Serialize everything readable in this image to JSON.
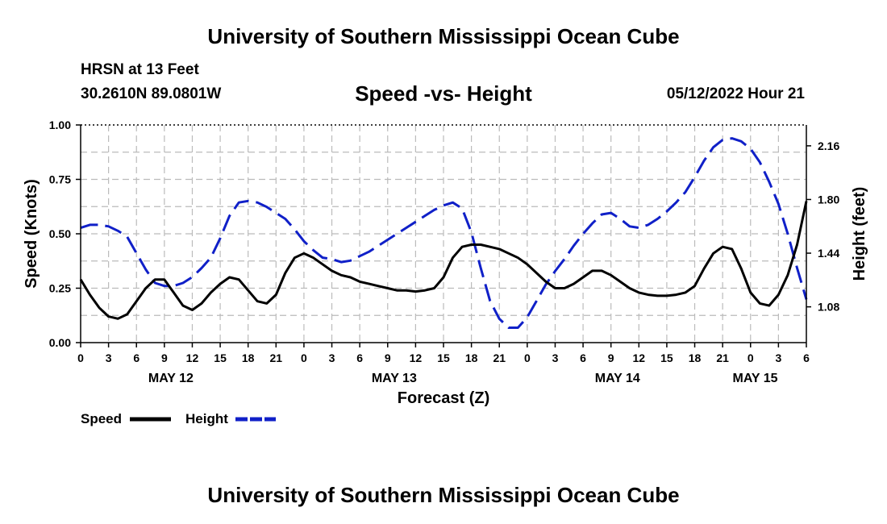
{
  "header": {
    "title": "University of Southern Mississippi Ocean Cube",
    "station": "HRSN at 13 Feet",
    "coords": "30.2610N  89.0801W",
    "chart_title": "Speed -vs- Height",
    "datetime": "05/12/2022 Hour 21"
  },
  "footer": {
    "title": "University of Southern Mississippi Ocean Cube"
  },
  "colors": {
    "speed": "#000000",
    "height": "#1020c8",
    "grid": "#bbbbbb"
  },
  "chart_data": {
    "type": "line",
    "title": "Speed -vs- Height",
    "xlabel": "Forecast (Z)",
    "ylabel": "Speed (Knots)",
    "y2label": "Height (feet)",
    "xlim": [
      0,
      78
    ],
    "ylim": [
      0,
      1.0
    ],
    "y2lim": [
      0.84,
      2.3
    ],
    "yticks": [
      0,
      0.25,
      0.5,
      0.75,
      1.0
    ],
    "ytick_labels": [
      "0.00",
      "0.25",
      "0.50",
      "0.75",
      "1.00"
    ],
    "y2ticks": [
      1.08,
      1.44,
      1.8,
      2.16
    ],
    "y2tick_labels": [
      "1.08",
      "1.44",
      "1.80",
      "2.16"
    ],
    "xticks": [
      0,
      3,
      6,
      9,
      12,
      15,
      18,
      21,
      24,
      27,
      30,
      33,
      36,
      39,
      42,
      45,
      48,
      51,
      54,
      57,
      60,
      63,
      66,
      69,
      72,
      75,
      78
    ],
    "xtick_labels": [
      "0",
      "3",
      "6",
      "9",
      "12",
      "15",
      "18",
      "21",
      "0",
      "3",
      "6",
      "9",
      "12",
      "15",
      "18",
      "21",
      "0",
      "3",
      "6",
      "9",
      "12",
      "15",
      "18",
      "21",
      "0",
      "3",
      "6"
    ],
    "date_labels": [
      {
        "label": "MAY 12",
        "x": 9.7
      },
      {
        "label": "MAY 13",
        "x": 33.7
      },
      {
        "label": "MAY 14",
        "x": 57.7
      },
      {
        "label": "MAY 15",
        "x": 72.5
      }
    ],
    "legend": [
      {
        "name": "Speed",
        "style": "solid"
      },
      {
        "name": "Height",
        "style": "dashed"
      }
    ],
    "legend_position": "bottom-left",
    "grid": true,
    "series": [
      {
        "name": "Speed",
        "axis": "left",
        "style": "solid",
        "x": [
          0,
          1,
          2,
          3,
          4,
          5,
          6,
          7,
          8,
          9,
          10,
          11,
          12,
          13,
          14,
          15,
          16,
          17,
          18,
          19,
          20,
          21,
          22,
          23,
          24,
          25,
          26,
          27,
          28,
          29,
          30,
          31,
          32,
          33,
          34,
          35,
          36,
          37,
          38,
          39,
          40,
          41,
          42,
          43,
          44,
          45,
          46,
          47,
          48,
          49,
          50,
          51,
          52,
          53,
          54,
          55,
          56,
          57,
          58,
          59,
          60,
          61,
          62,
          63,
          64,
          65,
          66,
          67,
          68,
          69,
          70,
          71,
          72,
          73,
          74,
          75,
          76,
          77,
          78
        ],
        "values": [
          0.29,
          0.22,
          0.16,
          0.12,
          0.11,
          0.13,
          0.19,
          0.25,
          0.29,
          0.29,
          0.23,
          0.17,
          0.15,
          0.18,
          0.23,
          0.27,
          0.3,
          0.29,
          0.24,
          0.19,
          0.18,
          0.22,
          0.32,
          0.39,
          0.41,
          0.39,
          0.36,
          0.33,
          0.31,
          0.3,
          0.28,
          0.27,
          0.26,
          0.25,
          0.24,
          0.24,
          0.235,
          0.24,
          0.25,
          0.3,
          0.39,
          0.44,
          0.45,
          0.45,
          0.44,
          0.43,
          0.41,
          0.39,
          0.36,
          0.32,
          0.28,
          0.25,
          0.25,
          0.27,
          0.3,
          0.33,
          0.33,
          0.31,
          0.28,
          0.25,
          0.23,
          0.22,
          0.215,
          0.215,
          0.22,
          0.23,
          0.26,
          0.34,
          0.41,
          0.44,
          0.43,
          0.34,
          0.23,
          0.18,
          0.17,
          0.22,
          0.31,
          0.45,
          0.65
        ]
      },
      {
        "name": "Height",
        "axis": "right",
        "style": "dashed",
        "x": [
          0,
          1,
          2,
          3,
          4,
          5,
          6,
          7,
          8,
          9,
          10,
          11,
          12,
          13,
          14,
          15,
          16,
          17,
          18,
          19,
          20,
          21,
          22,
          23,
          24,
          25,
          26,
          27,
          28,
          29,
          30,
          31,
          32,
          33,
          34,
          35,
          36,
          37,
          38,
          39,
          40,
          41,
          42,
          43,
          44,
          45,
          46,
          47,
          48,
          49,
          50,
          51,
          52,
          53,
          54,
          55,
          56,
          57,
          58,
          59,
          60,
          61,
          62,
          63,
          64,
          65,
          66,
          67,
          68,
          69,
          70,
          71,
          72,
          73,
          74,
          75,
          76,
          77,
          78
        ],
        "values": [
          1.61,
          1.63,
          1.63,
          1.62,
          1.59,
          1.55,
          1.44,
          1.33,
          1.24,
          1.22,
          1.22,
          1.24,
          1.28,
          1.34,
          1.41,
          1.54,
          1.69,
          1.78,
          1.79,
          1.78,
          1.75,
          1.71,
          1.67,
          1.6,
          1.52,
          1.46,
          1.41,
          1.4,
          1.38,
          1.39,
          1.42,
          1.45,
          1.49,
          1.53,
          1.57,
          1.61,
          1.65,
          1.69,
          1.73,
          1.76,
          1.78,
          1.74,
          1.58,
          1.34,
          1.12,
          1.0,
          0.94,
          0.94,
          1.01,
          1.12,
          1.23,
          1.32,
          1.4,
          1.49,
          1.57,
          1.64,
          1.7,
          1.71,
          1.67,
          1.62,
          1.61,
          1.63,
          1.67,
          1.72,
          1.78,
          1.85,
          1.95,
          2.06,
          2.15,
          2.2,
          2.21,
          2.19,
          2.14,
          2.05,
          1.92,
          1.77,
          1.57,
          1.34,
          1.13
        ]
      }
    ]
  }
}
